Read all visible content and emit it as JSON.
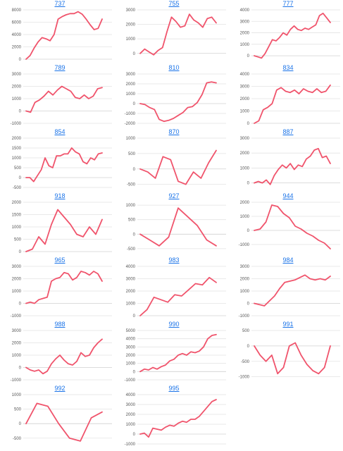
{
  "style": {
    "line_color": "#f0546c",
    "title_color": "#1a73e8"
  },
  "chart_data": [
    {
      "type": "line",
      "title": "737",
      "yticks": [
        8000,
        6000,
        4000,
        2000,
        0
      ],
      "ylim": [
        0,
        8000
      ],
      "values": [
        0,
        600,
        1800,
        2800,
        3500,
        3300,
        3000,
        4000,
        6500,
        6900,
        7200,
        7400,
        7400,
        7700,
        7300,
        6500,
        5600,
        4800,
        5000,
        6500
      ]
    },
    {
      "type": "line",
      "title": "755",
      "yticks": [
        3000,
        2000,
        1000,
        0
      ],
      "ylim": [
        -400,
        3000
      ],
      "values": [
        0,
        300,
        100,
        -100,
        200,
        400,
        1500,
        2500,
        2200,
        1800,
        1900,
        2700,
        2300,
        2100,
        1800,
        2400,
        2500,
        2100
      ]
    },
    {
      "type": "line",
      "title": "777",
      "yticks": [
        4000,
        3000,
        2000,
        1000,
        0
      ],
      "ylim": [
        -300,
        4000
      ],
      "values": [
        0,
        -100,
        -200,
        200,
        800,
        1400,
        1300,
        1600,
        2000,
        1800,
        2300,
        2600,
        2300,
        2200,
        2400,
        2300,
        2500,
        2700,
        3500,
        3700,
        3300,
        2900
      ]
    },
    {
      "type": "line",
      "title": "789",
      "yticks": [
        3000,
        2000,
        1000,
        0,
        -1000
      ],
      "ylim": [
        -1000,
        3000
      ],
      "values": [
        0,
        -100,
        700,
        900,
        1200,
        1600,
        1300,
        1700,
        2000,
        1800,
        1600,
        1100,
        1000,
        1300,
        1000,
        1200,
        1800,
        1900
      ]
    },
    {
      "type": "line",
      "title": "810",
      "yticks": [
        3000,
        2000,
        1000,
        0,
        -1000,
        -2000
      ],
      "ylim": [
        -2000,
        3000
      ],
      "values": [
        0,
        -100,
        -400,
        -600,
        -1600,
        -1800,
        -1700,
        -1500,
        -1200,
        -900,
        -400,
        -300,
        100,
        900,
        2100,
        2200,
        2100
      ]
    },
    {
      "type": "line",
      "title": "834",
      "yticks": [
        4000,
        3000,
        2000,
        1000,
        0
      ],
      "ylim": [
        0,
        4000
      ],
      "values": [
        0,
        200,
        1100,
        1300,
        1600,
        2700,
        2900,
        2600,
        2500,
        2700,
        2400,
        2800,
        2600,
        2500,
        2800,
        2500,
        2600,
        3100
      ]
    },
    {
      "type": "line",
      "title": "854",
      "yticks": [
        2000,
        1500,
        1000,
        500,
        0,
        -500
      ],
      "ylim": [
        -500,
        2000
      ],
      "values": [
        0,
        0,
        -200,
        100,
        400,
        1000,
        600,
        500,
        1100,
        1100,
        1200,
        1200,
        1500,
        1300,
        1200,
        800,
        700,
        1000,
        900,
        1200,
        1250
      ]
    },
    {
      "type": "line",
      "title": "870",
      "yticks": [
        1000,
        500,
        0,
        -500
      ],
      "ylim": [
        -600,
        1000
      ],
      "values": [
        0,
        -100,
        -300,
        400,
        300,
        -400,
        -500,
        -100,
        -300,
        200,
        600
      ]
    },
    {
      "type": "line",
      "title": "887",
      "yticks": [
        3000,
        2000,
        1000,
        0
      ],
      "ylim": [
        -300,
        3000
      ],
      "values": [
        0,
        100,
        0,
        200,
        -100,
        500,
        900,
        1200,
        1000,
        1300,
        900,
        1200,
        1100,
        1600,
        1800,
        2200,
        2300,
        1700,
        1800,
        1300
      ]
    },
    {
      "type": "line",
      "title": "918",
      "yticks": [
        2000,
        1500,
        1000,
        500,
        0
      ],
      "ylim": [
        0,
        2000
      ],
      "values": [
        0,
        100,
        600,
        300,
        1100,
        1700,
        1400,
        1100,
        700,
        600,
        1000,
        700,
        1300
      ]
    },
    {
      "type": "line",
      "title": "927",
      "yticks": [
        1000,
        500,
        0,
        -500
      ],
      "ylim": [
        -600,
        1100
      ],
      "values": [
        0,
        -200,
        -400,
        -100,
        900,
        600,
        300,
        -200,
        -400
      ]
    },
    {
      "type": "line",
      "title": "944",
      "yticks": [
        2000,
        1000,
        0,
        -1000
      ],
      "ylim": [
        -1500,
        2000
      ],
      "values": [
        0,
        100,
        600,
        1800,
        1700,
        1200,
        900,
        300,
        100,
        -200,
        -400,
        -700,
        -900,
        -1300
      ]
    },
    {
      "type": "line",
      "title": "965",
      "yticks": [
        3000,
        2000,
        1000,
        0,
        -1000
      ],
      "ylim": [
        -1000,
        3000
      ],
      "values": [
        0,
        100,
        0,
        300,
        400,
        500,
        1800,
        2000,
        2100,
        2500,
        2400,
        1900,
        2100,
        2600,
        2500,
        2300,
        2600,
        2400,
        1800
      ]
    },
    {
      "type": "line",
      "title": "983",
      "yticks": [
        4000,
        3000,
        2000,
        1000,
        0
      ],
      "ylim": [
        0,
        4000
      ],
      "values": [
        0,
        500,
        1500,
        1300,
        1100,
        1700,
        1600,
        2100,
        2600,
        2500,
        3100,
        2700
      ]
    },
    {
      "type": "line",
      "title": "984",
      "yticks": [
        3000,
        2000,
        1000,
        0,
        -1000
      ],
      "ylim": [
        -1000,
        3000
      ],
      "values": [
        0,
        -100,
        -200,
        200,
        600,
        1200,
        1700,
        1800,
        1900,
        2100,
        2300,
        2000,
        1900,
        2000,
        1900,
        2200
      ]
    },
    {
      "type": "line",
      "title": "988",
      "yticks": [
        3000,
        2000,
        1000,
        0,
        -1000
      ],
      "ylim": [
        -1000,
        3000
      ],
      "values": [
        0,
        -200,
        -300,
        -200,
        -500,
        -300,
        300,
        700,
        1000,
        600,
        300,
        200,
        500,
        1200,
        900,
        1000,
        1600,
        2000,
        2300
      ]
    },
    {
      "type": "line",
      "title": "990",
      "yticks": [
        5000,
        4000,
        3000,
        2000,
        1000,
        0,
        -1000
      ],
      "ylim": [
        -1000,
        5000
      ],
      "values": [
        0,
        300,
        200,
        500,
        300,
        600,
        800,
        1300,
        1500,
        2000,
        2200,
        2000,
        2400,
        2300,
        2500,
        3000,
        4000,
        4400,
        4500
      ]
    },
    {
      "type": "line",
      "title": "991",
      "yticks": [
        500,
        0,
        -500,
        -1000
      ],
      "ylim": [
        -1100,
        500
      ],
      "values": [
        0,
        -300,
        -500,
        -300,
        -900,
        -700,
        0,
        100,
        -300,
        -600,
        -800,
        -900,
        -700,
        0
      ]
    },
    {
      "type": "line",
      "title": "992",
      "yticks": [
        1000,
        500,
        0,
        -500
      ],
      "ylim": [
        -700,
        1000
      ],
      "values": [
        0,
        700,
        600,
        0,
        -500,
        -600,
        200,
        400
      ]
    },
    {
      "type": "line",
      "title": "995",
      "yticks": [
        4000,
        3000,
        2000,
        1000,
        0,
        -1000
      ],
      "ylim": [
        -1000,
        4000
      ],
      "values": [
        0,
        100,
        -300,
        600,
        500,
        400,
        700,
        900,
        800,
        1100,
        1300,
        1200,
        1500,
        1500,
        1800,
        2300,
        2800,
        3300,
        3500
      ]
    }
  ]
}
